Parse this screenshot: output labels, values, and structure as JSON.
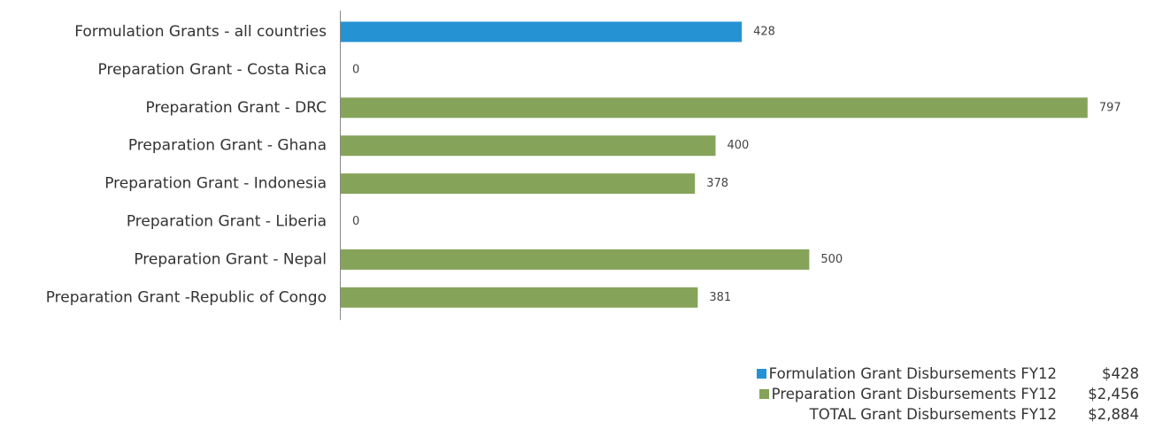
{
  "colors": {
    "formulation": "#2592d4",
    "preparation": "#86a35a",
    "axis": "#888888"
  },
  "chart_data": {
    "type": "bar",
    "orientation": "horizontal",
    "categories": [
      "Formulation Grants - all countries",
      "Preparation Grant - Costa Rica",
      "Preparation Grant - DRC",
      "Preparation Grant - Ghana",
      "Preparation Grant - Indonesia",
      "Preparation Grant - Liberia",
      "Preparation Grant - Nepal",
      "Preparation Grant -Republic of Congo"
    ],
    "values": [
      428,
      0,
      797,
      400,
      378,
      0,
      500,
      381
    ],
    "value_labels": [
      "428",
      "0",
      "797",
      "400",
      "378",
      "0",
      "500",
      "381"
    ],
    "bar_colors": [
      "formulation",
      "preparation",
      "preparation",
      "preparation",
      "preparation",
      "preparation",
      "preparation",
      "preparation"
    ],
    "xlim": [
      0,
      800
    ],
    "grid": false
  },
  "legend": {
    "placement": "bottom-right",
    "items": [
      {
        "label": "Formulation Grant Disbursements FY12",
        "amount": "$428",
        "color": "formulation"
      },
      {
        "label": "Preparation Grant Disbursements FY12",
        "amount": "$2,456",
        "color": "preparation"
      },
      {
        "label": "TOTAL Grant Disbursements FY12",
        "amount": "$2,884",
        "color": null
      }
    ]
  }
}
